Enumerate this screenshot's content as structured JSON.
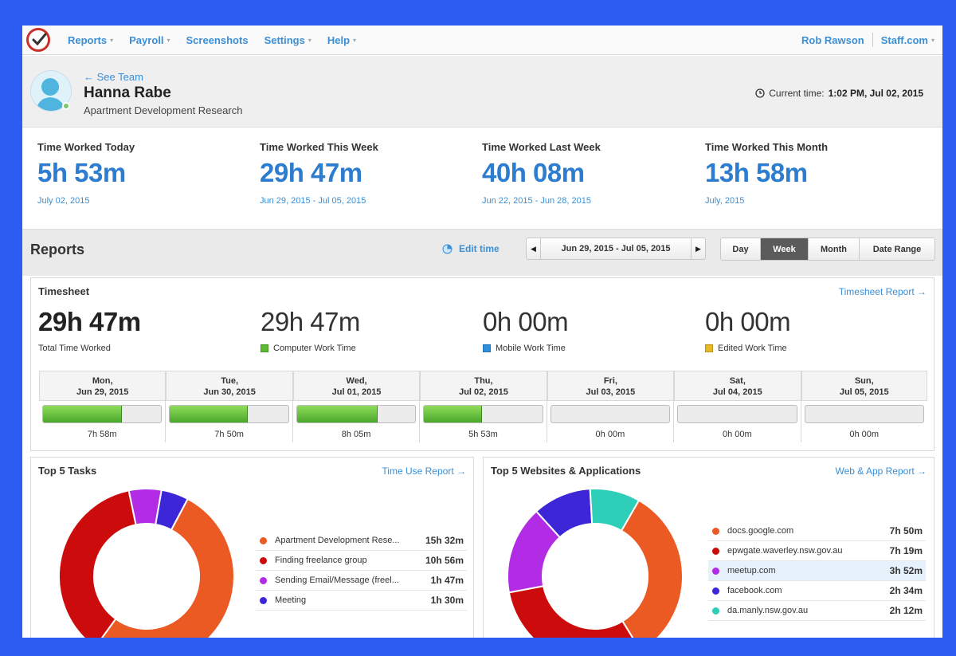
{
  "nav": {
    "items": [
      {
        "label": "Reports",
        "caret": true
      },
      {
        "label": "Payroll",
        "caret": true
      },
      {
        "label": "Screenshots",
        "caret": false
      },
      {
        "label": "Settings",
        "caret": true
      },
      {
        "label": "Help",
        "caret": true
      }
    ],
    "user": "Rob Rawson",
    "org": "Staff.com"
  },
  "profile": {
    "back_link": "← See Team",
    "name": "Hanna Rabe",
    "project": "Apartment Development Research",
    "current_time_label": "Current time:",
    "current_time_value": "1:02 PM, Jul 02, 2015"
  },
  "stats": [
    {
      "label": "Time Worked Today",
      "value": "5h 53m",
      "date": "July 02, 2015"
    },
    {
      "label": "Time Worked This Week",
      "value": "29h 47m",
      "date": "Jun 29, 2015 - Jul 05, 2015"
    },
    {
      "label": "Time Worked Last Week",
      "value": "40h 08m",
      "date": "Jun 22, 2015 - Jun 28, 2015"
    },
    {
      "label": "Time Worked This Month",
      "value": "13h 58m",
      "date": "July, 2015"
    }
  ],
  "reports": {
    "title": "Reports",
    "edit_time": "Edit time",
    "date_range": "Jun 29, 2015 - Jul 05, 2015",
    "views": [
      "Day",
      "Week",
      "Month",
      "Date Range"
    ],
    "active_view": "Week"
  },
  "timesheet": {
    "title": "Timesheet",
    "link": "Timesheet Report →",
    "metrics": [
      {
        "value": "29h 47m",
        "label": "Total Time Worked"
      },
      {
        "value": "29h 47m",
        "label": "Computer Work Time",
        "color": "#5cb934"
      },
      {
        "value": "0h 00m",
        "label": "Mobile Work Time",
        "color": "#2f8fdc"
      },
      {
        "value": "0h 00m",
        "label": "Edited Work Time",
        "color": "#e8b923"
      }
    ],
    "days": [
      {
        "day": "Mon,",
        "date": "Jun 29, 2015",
        "time": "7h 58m",
        "fraction": 0.67
      },
      {
        "day": "Tue,",
        "date": "Jun 30, 2015",
        "time": "7h 50m",
        "fraction": 0.66
      },
      {
        "day": "Wed,",
        "date": "Jul 01, 2015",
        "time": "8h 05m",
        "fraction": 0.68
      },
      {
        "day": "Thu,",
        "date": "Jul 02, 2015",
        "time": "5h 53m",
        "fraction": 0.49
      },
      {
        "day": "Fri,",
        "date": "Jul 03, 2015",
        "time": "0h 00m",
        "fraction": 0
      },
      {
        "day": "Sat,",
        "date": "Jul 04, 2015",
        "time": "0h 00m",
        "fraction": 0
      },
      {
        "day": "Sun,",
        "date": "Jul 05, 2015",
        "time": "0h 00m",
        "fraction": 0
      }
    ]
  },
  "tasks": {
    "title": "Top 5 Tasks",
    "link": "Time Use Report →",
    "items": [
      {
        "label": "Apartment Development Rese...",
        "time": "15h 32m",
        "minutes": 932,
        "color": "#ec5a24"
      },
      {
        "label": "Finding freelance group",
        "time": "10h 56m",
        "minutes": 656,
        "color": "#cc0c0c"
      },
      {
        "label": "Sending Email/Message (freel...",
        "time": "1h 47m",
        "minutes": 107,
        "color": "#b22ce6"
      },
      {
        "label": "Meeting",
        "time": "1h 30m",
        "minutes": 90,
        "color": "#3d26d8"
      }
    ]
  },
  "websites": {
    "title": "Top 5 Websites & Applications",
    "link": "Web & App Report →",
    "highlight_index": 2,
    "items": [
      {
        "label": "docs.google.com",
        "time": "7h 50m",
        "minutes": 470,
        "color": "#ec5a24"
      },
      {
        "label": "epwgate.waverley.nsw.gov.au",
        "time": "7h 19m",
        "minutes": 439,
        "color": "#cc0c0c"
      },
      {
        "label": "meetup.com",
        "time": "3h 52m",
        "minutes": 232,
        "color": "#b22ce6"
      },
      {
        "label": "facebook.com",
        "time": "2h 34m",
        "minutes": 154,
        "color": "#3d26d8"
      },
      {
        "label": "da.manly.nsw.gov.au",
        "time": "2h 12m",
        "minutes": 132,
        "color": "#2ecfb8"
      }
    ]
  }
}
